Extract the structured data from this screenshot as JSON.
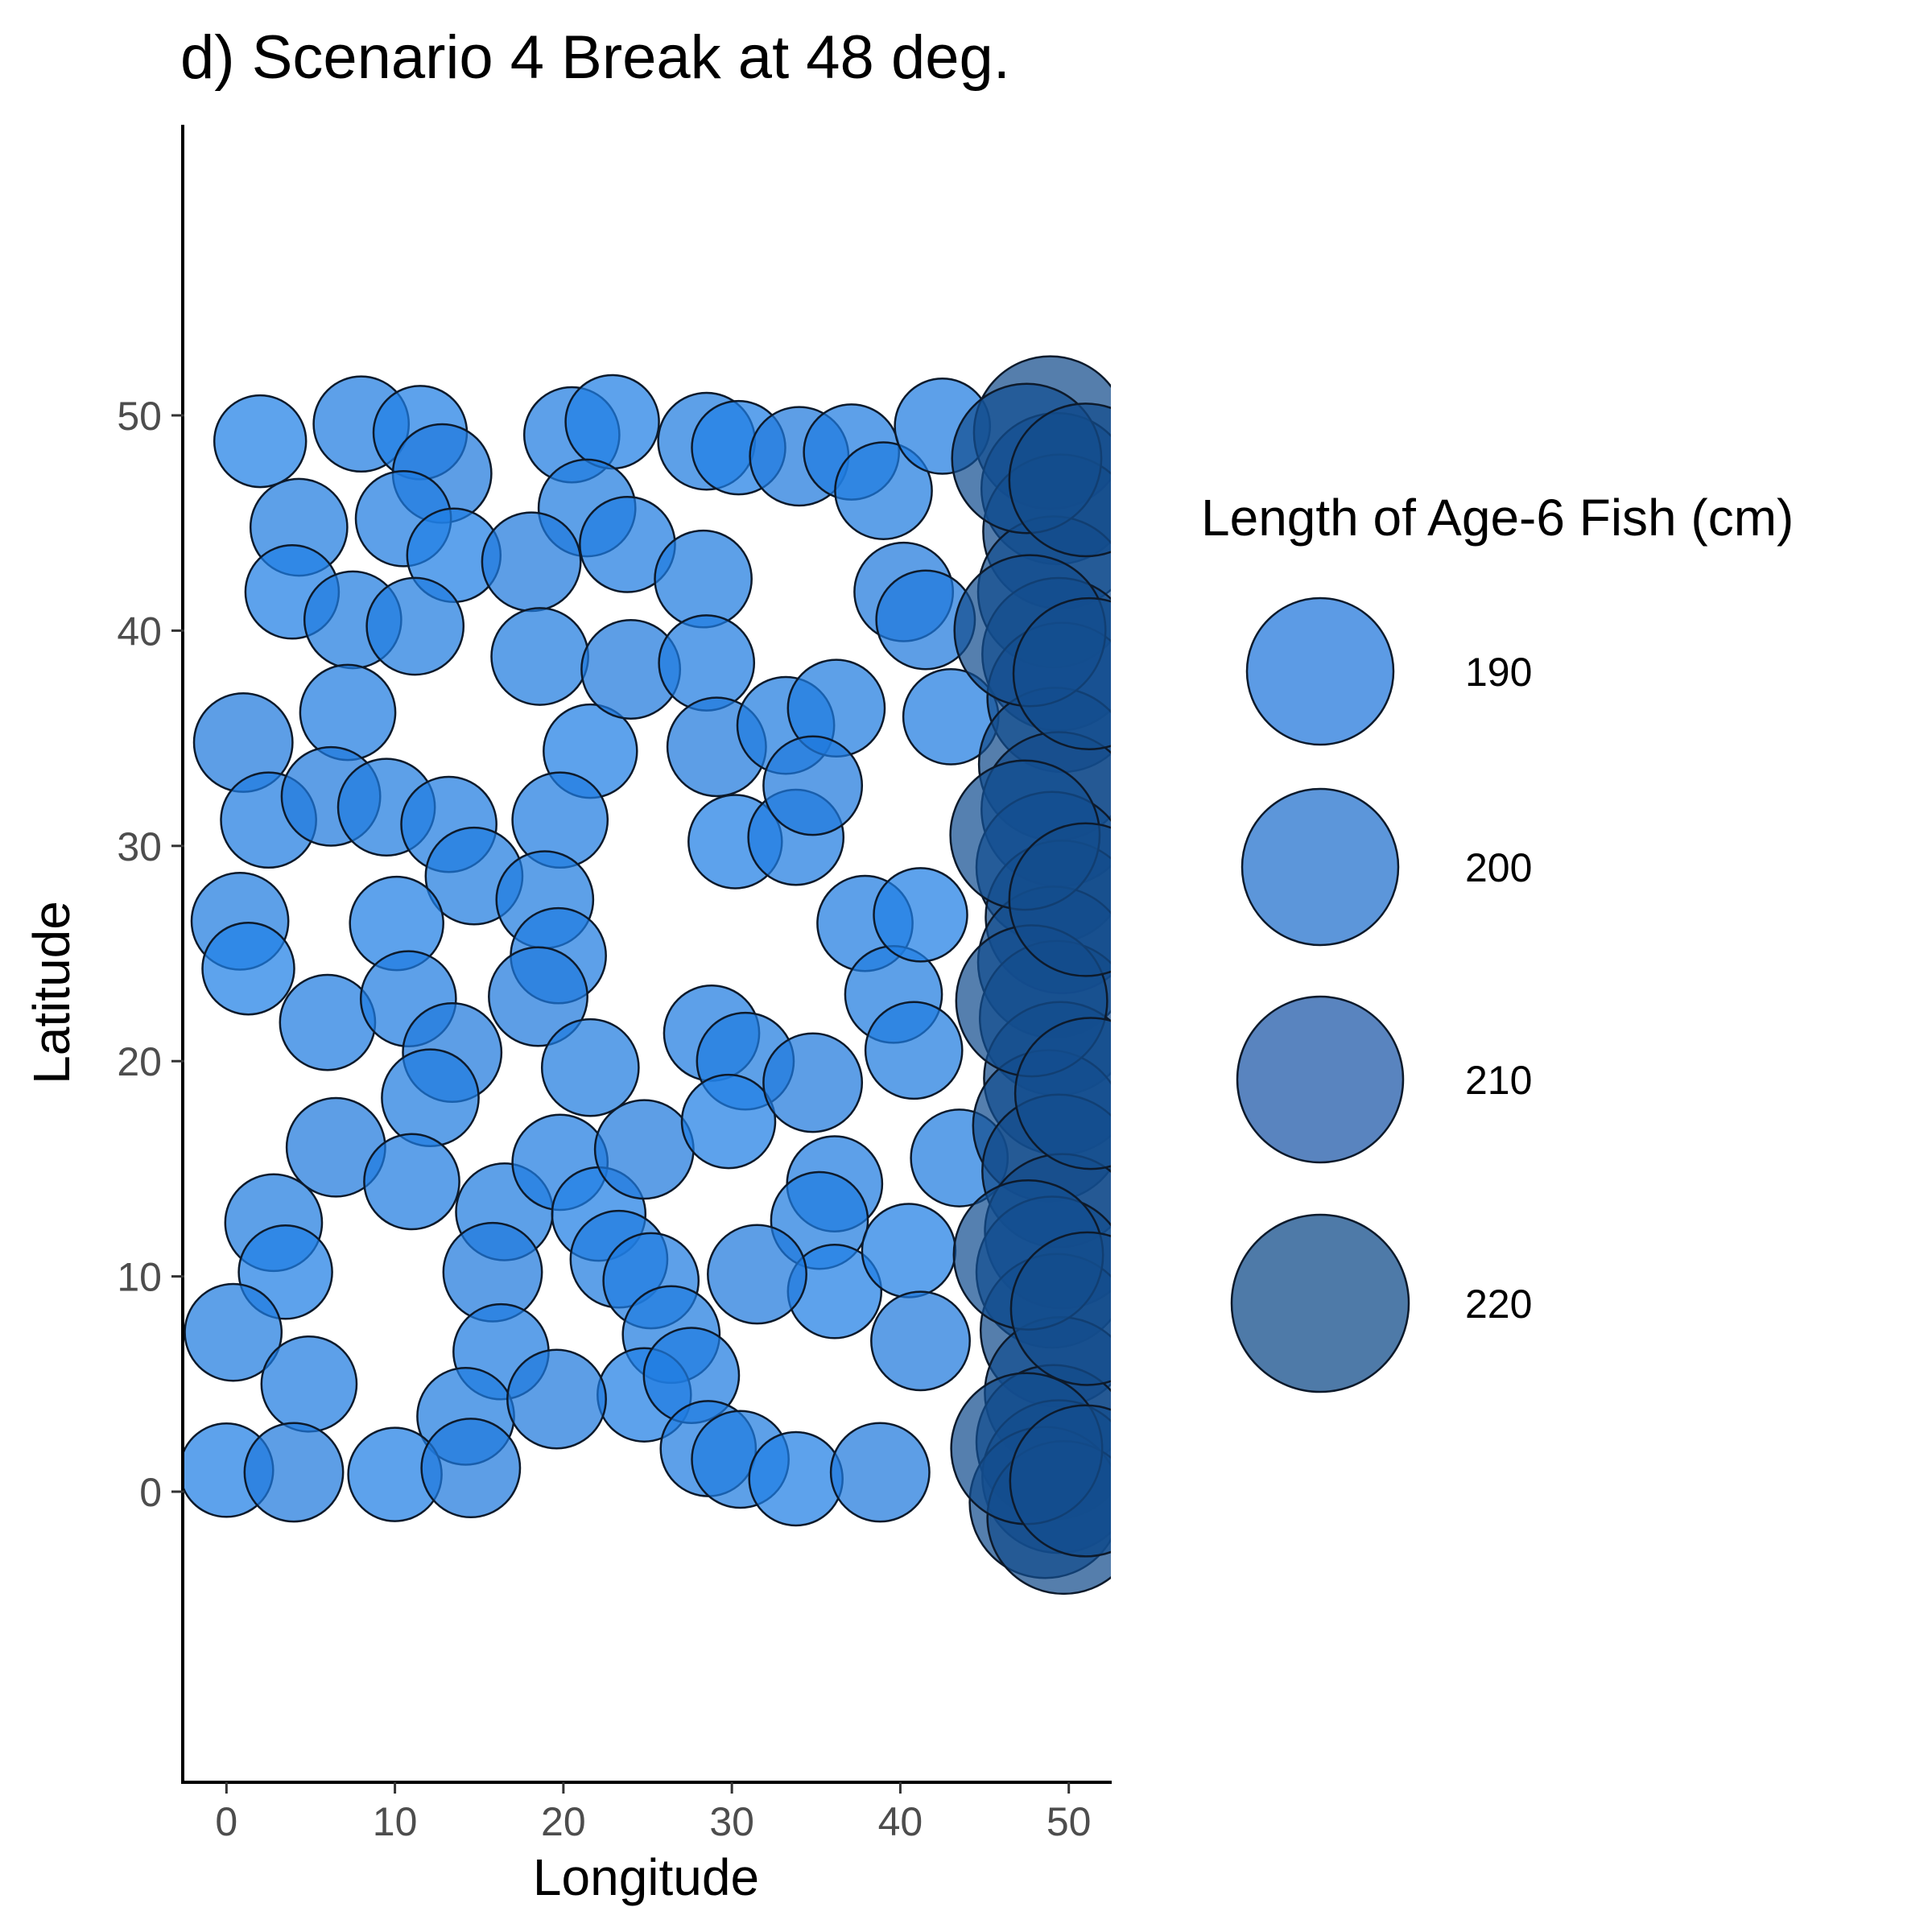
{
  "chart_data": {
    "type": "scatter",
    "title": "d) Scenario 4 Break at 48 deg.",
    "xlabel": "Longitude",
    "ylabel": "Latitude",
    "xlim": [
      -2.5,
      52.5
    ],
    "ylim": [
      -13.5,
      63.5
    ],
    "x_ticks": [
      "0",
      "10",
      "20",
      "30",
      "40",
      "50"
    ],
    "y_ticks": [
      "0",
      "10",
      "20",
      "30",
      "40",
      "50"
    ],
    "grid": false,
    "legend": {
      "title": "Length of Age-6 Fish (cm)",
      "placement": "right",
      "entries": [
        {
          "label": "190",
          "value": 190,
          "color": "#4a90e2"
        },
        {
          "label": "200",
          "value": 200,
          "color": "#4a8bd6"
        },
        {
          "label": "210",
          "value": 210,
          "color": "#4777b8"
        },
        {
          "label": "220",
          "value": 220,
          "color": "#3b6c9e"
        }
      ]
    },
    "colors": {
      "low_length_fill": "#1f7fe6",
      "high_length_fill": "#134b8a",
      "marker_stroke": "#0d1a2b"
    },
    "break_longitude": 48,
    "series": [
      {
        "name": "Length of Age-6 Fish (cm)",
        "points": [
          [
            2.0,
            48.8,
            185
          ],
          [
            4.3,
            44.8,
            188
          ],
          [
            3.9,
            41.8,
            186
          ],
          [
            1.0,
            34.8,
            189
          ],
          [
            2.5,
            31.2,
            187
          ],
          [
            0.8,
            26.5,
            188
          ],
          [
            1.3,
            24.3,
            185
          ],
          [
            6.0,
            21.8,
            187
          ],
          [
            6.5,
            16.0,
            189
          ],
          [
            2.8,
            12.5,
            188
          ],
          [
            3.5,
            10.2,
            186
          ],
          [
            0.4,
            7.4,
            188
          ],
          [
            4.9,
            5.0,
            187
          ],
          [
            0.0,
            1.0,
            186
          ],
          [
            4.0,
            0.9,
            189
          ],
          [
            8.0,
            49.6,
            187
          ],
          [
            11.5,
            49.2,
            186
          ],
          [
            12.8,
            47.3,
            189
          ],
          [
            10.5,
            45.2,
            187
          ],
          [
            13.5,
            43.5,
            186
          ],
          [
            7.5,
            40.5,
            188
          ],
          [
            11.2,
            40.2,
            188
          ],
          [
            7.2,
            36.2,
            187
          ],
          [
            6.2,
            32.3,
            189
          ],
          [
            9.5,
            31.8,
            188
          ],
          [
            13.2,
            31.0,
            187
          ],
          [
            14.7,
            28.6,
            188
          ],
          [
            10.1,
            26.4,
            186
          ],
          [
            10.8,
            22.9,
            187
          ],
          [
            13.4,
            20.4,
            189
          ],
          [
            12.1,
            18.3,
            188
          ],
          [
            11.0,
            14.4,
            187
          ],
          [
            16.5,
            13.0,
            188
          ],
          [
            15.8,
            10.2,
            189
          ],
          [
            16.3,
            6.5,
            187
          ],
          [
            14.2,
            3.5,
            188
          ],
          [
            10.0,
            0.8,
            186
          ],
          [
            14.5,
            1.1,
            189
          ],
          [
            20.5,
            49.1,
            187
          ],
          [
            22.9,
            49.7,
            186
          ],
          [
            21.4,
            45.7,
            188
          ],
          [
            23.8,
            44.0,
            187
          ],
          [
            18.1,
            43.2,
            189
          ],
          [
            18.6,
            38.8,
            188
          ],
          [
            21.6,
            34.4,
            186
          ],
          [
            24.0,
            38.2,
            189
          ],
          [
            19.8,
            31.2,
            187
          ],
          [
            18.9,
            27.5,
            188
          ],
          [
            19.7,
            24.9,
            187
          ],
          [
            18.5,
            23.0,
            189
          ],
          [
            21.6,
            19.7,
            188
          ],
          [
            19.8,
            15.3,
            187
          ],
          [
            22.1,
            12.9,
            186
          ],
          [
            23.3,
            10.8,
            188
          ],
          [
            24.8,
            15.9,
            189
          ],
          [
            25.2,
            9.8,
            187
          ],
          [
            26.4,
            7.3,
            188
          ],
          [
            24.8,
            4.5,
            186
          ],
          [
            19.6,
            4.3,
            189
          ],
          [
            27.6,
            5.4,
            187
          ],
          [
            28.5,
            48.8,
            188
          ],
          [
            30.4,
            48.5,
            186
          ],
          [
            34.0,
            48.1,
            189
          ],
          [
            37.1,
            48.3,
            187
          ],
          [
            28.3,
            42.4,
            188
          ],
          [
            28.5,
            38.5,
            187
          ],
          [
            29.1,
            34.6,
            189
          ],
          [
            33.2,
            35.6,
            188
          ],
          [
            30.2,
            30.2,
            186
          ],
          [
            33.8,
            30.4,
            187
          ],
          [
            36.2,
            36.4,
            188
          ],
          [
            34.8,
            32.8,
            189
          ],
          [
            28.8,
            21.3,
            187
          ],
          [
            30.8,
            20.0,
            188
          ],
          [
            29.8,
            17.2,
            186
          ],
          [
            34.8,
            19.0,
            189
          ],
          [
            36.1,
            14.3,
            187
          ],
          [
            35.2,
            12.6,
            188
          ],
          [
            36.1,
            9.3,
            186
          ],
          [
            31.5,
            10.1,
            189
          ],
          [
            28.6,
            2.0,
            187
          ],
          [
            30.5,
            1.5,
            188
          ],
          [
            33.8,
            0.6,
            186
          ],
          [
            38.8,
            0.9,
            189
          ],
          [
            37.9,
            26.4,
            187
          ],
          [
            39.6,
            23.1,
            188
          ],
          [
            41.2,
            26.8,
            186
          ],
          [
            40.2,
            41.8,
            189
          ],
          [
            39.0,
            46.5,
            188
          ],
          [
            42.5,
            49.5,
            187
          ],
          [
            41.5,
            40.5,
            189
          ],
          [
            43.0,
            36.0,
            187
          ],
          [
            40.8,
            20.5,
            188
          ],
          [
            40.5,
            11.2,
            186
          ],
          [
            41.2,
            7.0,
            189
          ],
          [
            43.5,
            15.5,
            188
          ],
          [
            48.9,
            49.2,
            221
          ],
          [
            49.3,
            46.6,
            220
          ],
          [
            49.5,
            44.6,
            222
          ],
          [
            49.1,
            41.8,
            220
          ],
          [
            49.4,
            38.9,
            221
          ],
          [
            49.6,
            36.9,
            219
          ],
          [
            49.2,
            33.8,
            221
          ],
          [
            49.4,
            31.7,
            222
          ],
          [
            49.0,
            29.0,
            220
          ],
          [
            49.6,
            26.7,
            221
          ],
          [
            49.1,
            24.6,
            220
          ],
          [
            49.3,
            22.0,
            222
          ],
          [
            49.5,
            19.2,
            221
          ],
          [
            48.8,
            17.0,
            220
          ],
          [
            49.4,
            14.9,
            221
          ],
          [
            49.6,
            12.1,
            222
          ],
          [
            49.0,
            10.2,
            220
          ],
          [
            49.3,
            7.5,
            221
          ],
          [
            49.5,
            4.6,
            220
          ],
          [
            49.1,
            2.3,
            222
          ],
          [
            49.4,
            0.7,
            221
          ],
          [
            48.6,
            -0.5,
            220
          ],
          [
            49.7,
            -1.2,
            221
          ],
          [
            47.5,
            48.0,
            219
          ],
          [
            47.7,
            40.0,
            220
          ],
          [
            47.4,
            30.5,
            219
          ],
          [
            47.8,
            22.8,
            220
          ],
          [
            47.6,
            11.0,
            219
          ],
          [
            47.5,
            2.0,
            220
          ],
          [
            51.0,
            47.0,
            221
          ],
          [
            51.2,
            38.0,
            220
          ],
          [
            51.0,
            27.5,
            221
          ],
          [
            51.3,
            18.5,
            220
          ],
          [
            51.1,
            8.5,
            221
          ],
          [
            51.0,
            0.5,
            220
          ]
        ]
      }
    ]
  }
}
